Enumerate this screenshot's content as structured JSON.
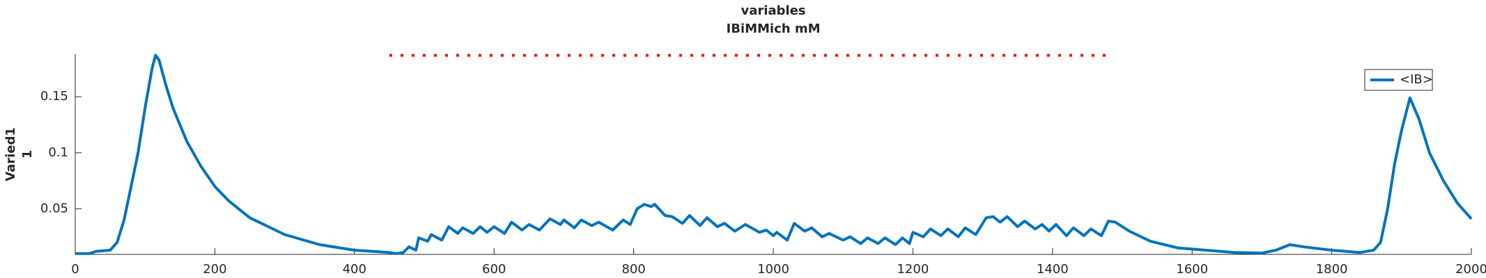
{
  "chart_data": {
    "type": "line",
    "title": [
      "variables",
      "IBiMMich mM"
    ],
    "ylabel": [
      "Varied1",
      "1"
    ],
    "xlim": [
      0,
      2000
    ],
    "xticks": [
      0,
      200,
      400,
      600,
      800,
      1000,
      1200,
      1400,
      1600,
      1800,
      2000
    ],
    "ylim": [
      0.0093,
      0.188
    ],
    "yticks": [
      0.05,
      0.1,
      0.15
    ],
    "legend": "northeast",
    "series": [
      {
        "name": "<IB>",
        "color": "#0072bd",
        "x": [
          0,
          20,
          30,
          50,
          60,
          70,
          80,
          90,
          100,
          110,
          115,
          120,
          130,
          140,
          160,
          180,
          200,
          220,
          250,
          300,
          350,
          400,
          450,
          460,
          470,
          478,
          488,
          492,
          505,
          510,
          525,
          535,
          548,
          555,
          570,
          580,
          590,
          600,
          615,
          625,
          640,
          650,
          665,
          680,
          695,
          700,
          715,
          725,
          740,
          750,
          770,
          785,
          795,
          805,
          815,
          825,
          830,
          845,
          855,
          870,
          880,
          895,
          905,
          920,
          930,
          945,
          960,
          980,
          990,
          1000,
          1005,
          1020,
          1030,
          1045,
          1055,
          1070,
          1080,
          1100,
          1110,
          1125,
          1135,
          1150,
          1160,
          1175,
          1185,
          1195,
          1200,
          1215,
          1225,
          1240,
          1250,
          1265,
          1275,
          1290,
          1305,
          1315,
          1325,
          1335,
          1350,
          1360,
          1375,
          1385,
          1395,
          1405,
          1420,
          1430,
          1445,
          1455,
          1470,
          1480,
          1490,
          1510,
          1540,
          1580,
          1620,
          1660,
          1700,
          1720,
          1740,
          1760,
          1800,
          1840,
          1860,
          1870,
          1880,
          1890,
          1900,
          1912,
          1925,
          1940,
          1960,
          1980,
          2000
        ],
        "values": [
          0.01,
          0.01,
          0.012,
          0.013,
          0.02,
          0.04,
          0.07,
          0.1,
          0.14,
          0.175,
          0.187,
          0.183,
          0.16,
          0.14,
          0.11,
          0.088,
          0.07,
          0.057,
          0.042,
          0.027,
          0.018,
          0.013,
          0.011,
          0.01,
          0.011,
          0.016,
          0.013,
          0.024,
          0.021,
          0.027,
          0.022,
          0.034,
          0.028,
          0.033,
          0.028,
          0.034,
          0.029,
          0.034,
          0.028,
          0.038,
          0.031,
          0.036,
          0.031,
          0.041,
          0.036,
          0.04,
          0.033,
          0.04,
          0.035,
          0.038,
          0.031,
          0.04,
          0.036,
          0.05,
          0.054,
          0.052,
          0.054,
          0.044,
          0.043,
          0.037,
          0.044,
          0.035,
          0.042,
          0.034,
          0.037,
          0.03,
          0.036,
          0.029,
          0.031,
          0.026,
          0.029,
          0.022,
          0.037,
          0.03,
          0.033,
          0.025,
          0.028,
          0.022,
          0.025,
          0.019,
          0.024,
          0.019,
          0.024,
          0.018,
          0.024,
          0.019,
          0.029,
          0.025,
          0.032,
          0.026,
          0.032,
          0.025,
          0.033,
          0.027,
          0.042,
          0.043,
          0.038,
          0.043,
          0.034,
          0.039,
          0.032,
          0.036,
          0.03,
          0.036,
          0.026,
          0.033,
          0.026,
          0.032,
          0.026,
          0.039,
          0.038,
          0.03,
          0.021,
          0.015,
          0.013,
          0.011,
          0.0105,
          0.013,
          0.018,
          0.016,
          0.013,
          0.011,
          0.013,
          0.02,
          0.05,
          0.09,
          0.12,
          0.149,
          0.13,
          0.1,
          0.075,
          0.055,
          0.041
        ]
      },
      {
        "color": "#ff0000",
        "style": "dotted",
        "x": [
          450,
          1480
        ],
        "values": [
          0.187,
          0.187
        ]
      }
    ]
  }
}
